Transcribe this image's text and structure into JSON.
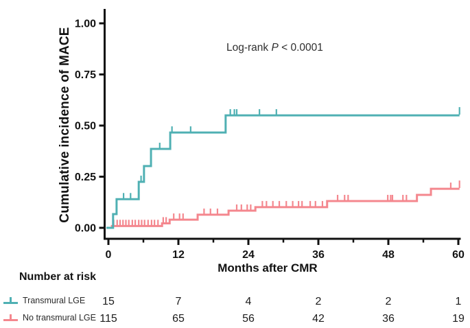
{
  "colors": {
    "transmural": "#4fb0b3",
    "no_transmural": "#f4878e",
    "axis": "#111111",
    "text": "#121212"
  },
  "annotation": {
    "prefix": "Log-rank ",
    "p_label": "P",
    "suffix": " < 0.0001"
  },
  "chart_data": {
    "type": "line",
    "subtype": "kaplan-meier-cumulative-incidence",
    "title": "",
    "xlabel": "Months after CMR",
    "ylabel": "Cumulative incidence of MACE",
    "x_ticks": [
      0,
      12,
      24,
      36,
      48,
      60
    ],
    "x_minor_ticks": [
      6,
      18,
      30,
      42,
      54
    ],
    "x_tick_labels": [
      "0",
      "12",
      "24",
      "36",
      "48",
      "60"
    ],
    "y_ticks": [
      0.0,
      0.25,
      0.5,
      0.75,
      1.0
    ],
    "y_tick_labels": [
      "0.00",
      "0.25",
      "0.50",
      "0.75",
      "1.00"
    ],
    "xlim": [
      -0.35,
      60.3
    ],
    "ylim": [
      0,
      1.05
    ],
    "grid": false,
    "legend_position": "bottom-left-risk-table",
    "series": [
      {
        "name": "Transmural LGE",
        "color": "#4fb0b3",
        "steps": [
          [
            -0.35,
            0.0
          ],
          [
            0.8,
            0.067
          ],
          [
            1.4,
            0.14
          ],
          [
            5.2,
            0.225
          ],
          [
            6.1,
            0.302
          ],
          [
            7.3,
            0.386
          ],
          [
            10.6,
            0.466
          ],
          [
            20.1,
            0.55
          ],
          [
            60.2,
            0.55
          ]
        ],
        "censor_ticks": [
          2.6,
          3.8,
          5.6,
          8.8,
          10.9,
          14.1,
          20.9,
          21.6,
          22.0,
          25.9,
          28.8,
          60.2
        ]
      },
      {
        "name": "No transmural LGE",
        "color": "#f4878e",
        "steps": [
          [
            -0.35,
            0.0
          ],
          [
            0.6,
            0.009
          ],
          [
            9.2,
            0.022
          ],
          [
            10.5,
            0.04
          ],
          [
            15.3,
            0.064
          ],
          [
            20.6,
            0.084
          ],
          [
            25.2,
            0.101
          ],
          [
            37.5,
            0.131
          ],
          [
            52.9,
            0.161
          ],
          [
            55.3,
            0.191
          ],
          [
            60.2,
            0.191
          ]
        ],
        "censor_ticks": [
          0.9,
          1.5,
          2.0,
          2.5,
          3.0,
          3.5,
          4.1,
          4.6,
          5.2,
          5.7,
          6.2,
          6.8,
          7.4,
          7.9,
          8.5,
          9.4,
          9.9,
          11.2,
          12.2,
          12.8,
          16.4,
          17.5,
          18.7,
          22.0,
          22.8,
          23.8,
          24.4,
          26.4,
          27.1,
          28.2,
          29.3,
          30.5,
          31.6,
          32.6,
          33.2,
          34.6,
          35.5,
          36.7,
          39.3,
          40.5,
          41.1,
          47.9,
          48.4,
          48.7,
          50.5,
          51.1,
          58.7,
          60.2
        ]
      }
    ]
  },
  "risk_table": {
    "header": "Number at risk",
    "columns": [
      0,
      12,
      24,
      36,
      48,
      60
    ],
    "rows": [
      {
        "label": "Transmural LGE",
        "values": [
          "15",
          "7",
          "4",
          "2",
          "2",
          "1"
        ]
      },
      {
        "label": "No transmural LGE",
        "values": [
          "115",
          "65",
          "56",
          "42",
          "36",
          "19"
        ]
      }
    ]
  }
}
